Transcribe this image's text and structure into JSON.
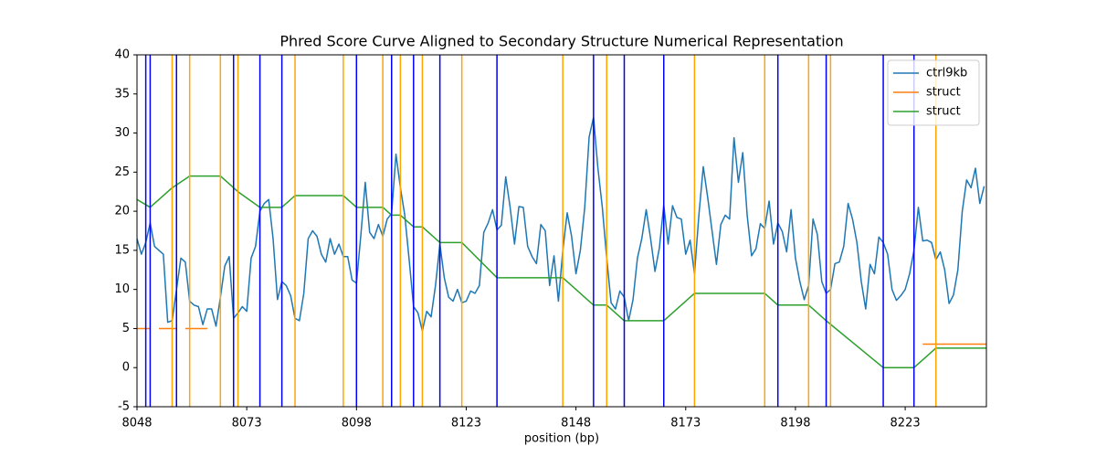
{
  "chart_data": {
    "type": "line",
    "title": "Phred Score Curve Aligned to Secondary Structure Numerical Representation",
    "xlabel": "position (bp)",
    "xlim": [
      8048,
      8241.5
    ],
    "ylim": [
      -5,
      40
    ],
    "xticks": [
      8048,
      8073,
      8098,
      8123,
      8148,
      8173,
      8198,
      8223
    ],
    "yticks": [
      -5,
      0,
      5,
      10,
      15,
      20,
      25,
      30,
      35,
      40
    ],
    "legend": "upper right",
    "series": [
      {
        "name": "ctrl9kb",
        "color": "#1f77b4",
        "x": [
          8048,
          8049,
          8050,
          8051,
          8052,
          8053,
          8054,
          8055,
          8056,
          8057,
          8058,
          8059,
          8060,
          8061,
          8062,
          8063,
          8064,
          8065,
          8066,
          8067,
          8068,
          8069,
          8070,
          8071,
          8072,
          8073,
          8074,
          8075,
          8076,
          8077,
          8078,
          8079,
          8080,
          8081,
          8082,
          8083,
          8084,
          8085,
          8086,
          8087,
          8088,
          8089,
          8090,
          8091,
          8092,
          8093,
          8094,
          8095,
          8096,
          8097,
          8098,
          8099,
          8100,
          8101,
          8102,
          8103,
          8104,
          8105,
          8106,
          8107,
          8108,
          8109,
          8110,
          8111,
          8112,
          8113,
          8114,
          8115,
          8116,
          8117,
          8118,
          8119,
          8120,
          8121,
          8122,
          8123,
          8124,
          8125,
          8126,
          8127,
          8128,
          8129,
          8130,
          8131,
          8132,
          8133,
          8134,
          8135,
          8136,
          8137,
          8138,
          8139,
          8140,
          8141,
          8142,
          8143,
          8144,
          8145,
          8146,
          8147,
          8148,
          8149,
          8150,
          8151,
          8152,
          8153,
          8154,
          8155,
          8156,
          8157,
          8158,
          8159,
          8160,
          8161,
          8162,
          8163,
          8164,
          8165,
          8166,
          8167,
          8168,
          8169,
          8170,
          8171,
          8172,
          8173,
          8174,
          8175,
          8176,
          8177,
          8178,
          8179,
          8180,
          8181,
          8182,
          8183,
          8184,
          8185,
          8186,
          8187,
          8188,
          8189,
          8190,
          8191,
          8192,
          8193,
          8194,
          8195,
          8196,
          8197,
          8198,
          8199,
          8200,
          8201,
          8202,
          8203,
          8204,
          8205,
          8206,
          8207,
          8208,
          8209,
          8210,
          8211,
          8212,
          8213,
          8214,
          8215,
          8216,
          8217,
          8218,
          8219,
          8220,
          8221,
          8222,
          8223,
          8224,
          8225,
          8226,
          8227,
          8228,
          8229,
          8230,
          8231,
          8232,
          8233,
          8234,
          8235,
          8236,
          8237,
          8238,
          8239,
          8240,
          8241
        ],
        "values": [
          16.5,
          14.5,
          16,
          18.5,
          15.5,
          15,
          14.5,
          5.8,
          6,
          10,
          14,
          13.5,
          8.5,
          8,
          7.8,
          5.5,
          7.5,
          7.5,
          5.3,
          9,
          13,
          14.2,
          6.3,
          7,
          7.8,
          7.2,
          14,
          15.5,
          20,
          21,
          21.5,
          16.5,
          8.7,
          11,
          10.5,
          9.2,
          6.3,
          6,
          9.5,
          16.5,
          17.5,
          16.8,
          14.5,
          13.5,
          16.5,
          14.5,
          15.8,
          14.2,
          14.2,
          11.2,
          10.8,
          17,
          23.7,
          17.3,
          16.5,
          18.3,
          16.8,
          19,
          19.7,
          27.3,
          23,
          19.5,
          13.8,
          7.8,
          7,
          4.7,
          7.2,
          6.5,
          10.5,
          15.8,
          11.5,
          9,
          8.5,
          10,
          8.3,
          8.5,
          9.8,
          9.5,
          10.5,
          17.3,
          18.5,
          20.2,
          17.6,
          18.2,
          24.4,
          20.5,
          15.8,
          20.6,
          20.5,
          15.5,
          14.2,
          13.3,
          18.3,
          17.5,
          10.5,
          14.3,
          8.5,
          15,
          19.8,
          16.8,
          12,
          15,
          20.5,
          29.5,
          32,
          25.5,
          20.5,
          14,
          8.3,
          7.5,
          9.8,
          9,
          6,
          8.7,
          14,
          16.5,
          20.2,
          16.5,
          12.3,
          15.3,
          20.8,
          15.8,
          20.7,
          19.2,
          19,
          14.5,
          16.3,
          12,
          19.5,
          25.7,
          21.8,
          17.5,
          13.2,
          18.3,
          19.5,
          19,
          29.4,
          23.7,
          27.5,
          19.5,
          14.3,
          15.2,
          18.4,
          17.8,
          21.3,
          15.8,
          18.5,
          17.4,
          14.8,
          20.2,
          14,
          11,
          8.7,
          10.5,
          19,
          17,
          11,
          9.5,
          10,
          13.3,
          13.5,
          15.5,
          21,
          19,
          16,
          11,
          7.5,
          13.2,
          12,
          16.7,
          16,
          14.5,
          10,
          8.6,
          9.2,
          10,
          12,
          15,
          20.5,
          16.2,
          16.3,
          16,
          13.8,
          14.8,
          12.5,
          8.2,
          9.3,
          12.5,
          20,
          24,
          23,
          25.5,
          21,
          23.2
        ]
      },
      {
        "name": "struct",
        "color": "#ff7f0e",
        "x": [
          8048,
          8051,
          8052,
          8053,
          8057,
          8058,
          8059,
          8064,
          8065,
          8227,
          8241.5
        ],
        "values": [
          5,
          5,
          null,
          5,
          5,
          null,
          5,
          5,
          null,
          3,
          3
        ]
      },
      {
        "name": "struct",
        "color": "#2ca02c",
        "x": [
          8048,
          8051,
          8056,
          8060,
          8067,
          8070,
          8071,
          8076,
          8081,
          8084,
          8095,
          8098,
          8104,
          8106,
          8108,
          8111,
          8113,
          8117,
          8122,
          8130,
          8145,
          8152,
          8155,
          8159,
          8168,
          8175,
          8191,
          8194,
          8201,
          8205,
          8218,
          8225,
          8230,
          8241.5
        ],
        "values": [
          21.5,
          20.5,
          23,
          24.5,
          24.5,
          23,
          22.5,
          20.5,
          20.5,
          22,
          22,
          20.5,
          20.5,
          19.5,
          19.5,
          18,
          18,
          16,
          16,
          11.5,
          11.5,
          8,
          8,
          6,
          6,
          9.5,
          9.5,
          8,
          8,
          6,
          0,
          0,
          2.5,
          2.5
        ]
      }
    ],
    "vlines": [
      {
        "color": "#0000ff",
        "x": [
          8050,
          8051,
          8057,
          8070,
          8076,
          8081,
          8098,
          8106,
          8111,
          8117,
          8130,
          8152,
          8159,
          8168,
          8194,
          8205,
          8218,
          8225
        ]
      },
      {
        "color": "#ffa500",
        "x": [
          8056,
          8060,
          8067,
          8071,
          8084,
          8095,
          8104,
          8108,
          8113,
          8122,
          8145,
          8155,
          8175,
          8191,
          8201,
          8206,
          8230
        ]
      }
    ]
  }
}
